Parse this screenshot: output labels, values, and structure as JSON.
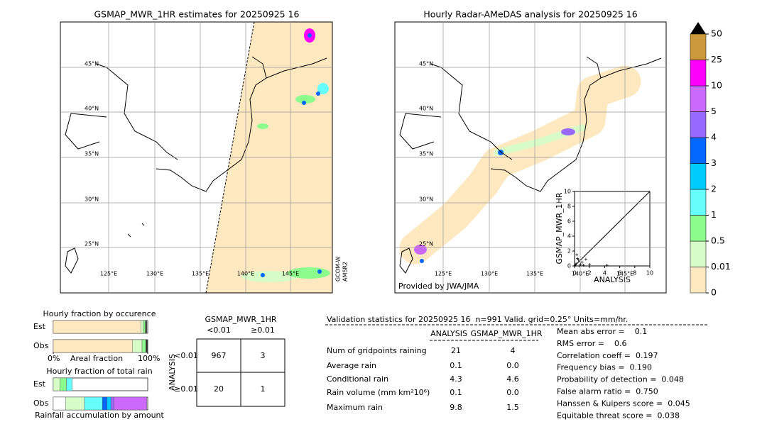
{
  "maps": [
    {
      "title": "GSMAP_MWR_1HR estimates for 20250925 16",
      "lat_labels": [
        "45°N",
        "40°N",
        "35°N",
        "30°N",
        "25°N"
      ],
      "lon_labels": [
        "125°E",
        "130°E",
        "135°E",
        "140°E",
        "145°E"
      ],
      "side_label": [
        "GCOM-W",
        "AMSR2"
      ]
    },
    {
      "title": "Hourly Radar-AMeDAS analysis for 20250925 16",
      "lat_labels": [
        "45°N",
        "40°N",
        "35°N",
        "30°N",
        "25°N"
      ],
      "lon_labels": [
        "125°E",
        "130°E",
        "135°E",
        "140°E",
        "145°E"
      ],
      "credit": "Provided by JWA/JMA"
    }
  ],
  "colorbar": {
    "levels": [
      0,
      0.01,
      0.5,
      1,
      2,
      3,
      4,
      5,
      10,
      25,
      50
    ],
    "colors": [
      "#fde8bf",
      "#d8fcc8",
      "#8cfc8c",
      "#66fcfc",
      "#00ccfc",
      "#0068fc",
      "#9968fc",
      "#cc68fc",
      "#fc00fc",
      "#cc9a3a"
    ]
  },
  "chart_data": [
    {
      "type": "scatter",
      "x_label": "ANALYSIS",
      "y_label": "GSMAP_MWR_1HR",
      "xlim": [
        0,
        10
      ],
      "ylim": [
        0,
        10
      ],
      "xticks": [
        0,
        2,
        4,
        6,
        8,
        10
      ],
      "yticks": [
        0,
        2,
        4,
        6,
        8,
        10
      ],
      "x": [
        0.1,
        0.2,
        0.3,
        0.5,
        0.8,
        1.0,
        1.2,
        0.4,
        4.3,
        2.0,
        1.5,
        0.6
      ],
      "y": [
        0.1,
        0.3,
        1.5,
        0.8,
        0.2,
        0.5,
        0.1,
        1.0,
        0.1,
        0.2,
        0.9,
        0.0
      ]
    },
    {
      "type": "stacked-bar",
      "title": "Hourly fraction by occurence",
      "categories": [
        "Est",
        "Obs"
      ],
      "x_label": "Areal fraction",
      "xlim": [
        0,
        100
      ],
      "xticks": [
        {
          "value": 0,
          "label": "0%"
        },
        {
          "value": 100,
          "label": "100%"
        }
      ],
      "series": [
        {
          "color": "#fde8bf",
          "values": [
            93,
            84
          ]
        },
        {
          "color": "#d8fcc8",
          "values": [
            2.5,
            10
          ]
        },
        {
          "color": "#8cfc8c",
          "values": [
            2,
            4
          ]
        },
        {
          "color": "#333333",
          "values": [
            1.5,
            2
          ]
        }
      ]
    },
    {
      "type": "stacked-bar",
      "title": "Hourly fraction of total rain",
      "categories": [
        "Est",
        "Obs"
      ],
      "x_label": "Rainfall accumulation by amount",
      "xlim": [
        0,
        100
      ],
      "series": [
        {
          "color": "#ffffff",
          "values": [
            0,
            13
          ]
        },
        {
          "color": "#d8fcc8",
          "values": [
            7,
            20
          ]
        },
        {
          "color": "#8cfc8c",
          "values": [
            7,
            0
          ]
        },
        {
          "color": "#66fcfc",
          "values": [
            6,
            19
          ]
        },
        {
          "color": "#0068fc",
          "values": [
            0,
            5
          ]
        },
        {
          "color": "#00ccfc",
          "values": [
            0,
            4
          ]
        },
        {
          "color": "#9968fc",
          "values": [
            0,
            3
          ]
        },
        {
          "color": "#cc68fc",
          "values": [
            0,
            35
          ]
        }
      ]
    }
  ],
  "contingency": {
    "title": "GSMAP_MWR_1HR",
    "columns": [
      "<0.01",
      "≥0.01"
    ],
    "row_title": "ANALYSIS",
    "rows": [
      "<0.01",
      "≥0.01"
    ],
    "cells": [
      [
        "967",
        "3"
      ],
      [
        "20",
        "1"
      ]
    ]
  },
  "validation": {
    "title": "Validation statistics for 20250925 16  n=991 Valid. grid=0.25° Units=mm/hr.",
    "columns": [
      "ANALYSIS",
      "GSMAP_MWR_1HR"
    ],
    "rows": [
      {
        "label": "Num of gridpoints raining",
        "values": [
          "21",
          "4"
        ]
      },
      {
        "label": "Average rain",
        "values": [
          "0.1",
          "0.0"
        ]
      },
      {
        "label": "Conditional rain",
        "values": [
          "4.3",
          "4.6"
        ]
      },
      {
        "label": "Rain volume (mm km²10⁶)",
        "values": [
          "0.1",
          "0.0"
        ]
      },
      {
        "label": "Maximum rain",
        "values": [
          "9.8",
          "1.5"
        ]
      }
    ],
    "scores": [
      "Mean abs error =    0.1",
      "RMS error =    0.6",
      "Correlation coeff =  0.197",
      "Frequency bias =  0.190",
      "Probability of detection =  0.048",
      "False alarm ratio =  0.750",
      "Hanssen & Kuipers score =  0.045",
      "Equitable threat score =  0.038"
    ]
  }
}
